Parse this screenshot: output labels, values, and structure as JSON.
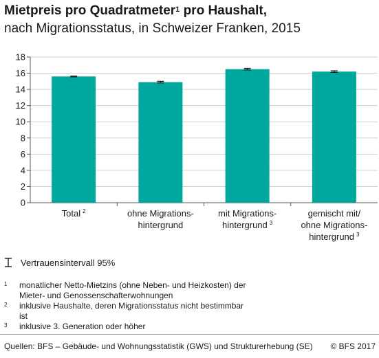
{
  "title": "Mietpreis pro Quadratmeter",
  "title_sup": "1",
  "title_rest": " pro Haushalt,",
  "subtitle": "nach Migrationsstatus, in Schweizer Franken, 2015",
  "colors": {
    "bar": "#00a79d",
    "grid": "#cfcfcf",
    "axis": "#555555"
  },
  "chart_data": {
    "type": "bar",
    "categories": [
      {
        "lines": [
          "Total"
        ],
        "sup": "2"
      },
      {
        "lines": [
          "ohne Migrations-",
          "hintergrund"
        ],
        "sup": ""
      },
      {
        "lines": [
          "mit Migrations-",
          "hintergrund"
        ],
        "sup": "3"
      },
      {
        "lines": [
          "gemischt mit/",
          "ohne Migrations-",
          "hintergrund"
        ],
        "sup": "3"
      }
    ],
    "values": [
      15.6,
      14.9,
      16.5,
      16.2
    ],
    "ci_low": [
      15.55,
      14.8,
      16.4,
      16.1
    ],
    "ci_high": [
      15.65,
      15.0,
      16.6,
      16.3
    ],
    "yticks": [
      "0",
      "2",
      "4",
      "6",
      "8",
      "10",
      "12",
      "14",
      "16",
      "18"
    ],
    "ylim": [
      0,
      18
    ],
    "grid": true
  },
  "legend": {
    "ci_label": "Vertrauensintervall 95%",
    "icon": "confidence-interval-icon"
  },
  "footnotes": [
    {
      "num": "1",
      "text": "monatlicher Netto-Mietzins (ohne Neben- und Heizkosten) der Mieter- und Genossenschafterwohnungen"
    },
    {
      "num": "2",
      "text": "inklusive Haushalte, deren Migrationsstatus nicht bestimmbar ist"
    },
    {
      "num": "3",
      "text": "inklusive 3. Generation oder höher"
    }
  ],
  "footer": {
    "source": "Quellen: BFS – Gebäude- und Wohnungsstatistik (GWS) und Strukturerhebung (SE)",
    "copyright": "© BFS 2017"
  }
}
